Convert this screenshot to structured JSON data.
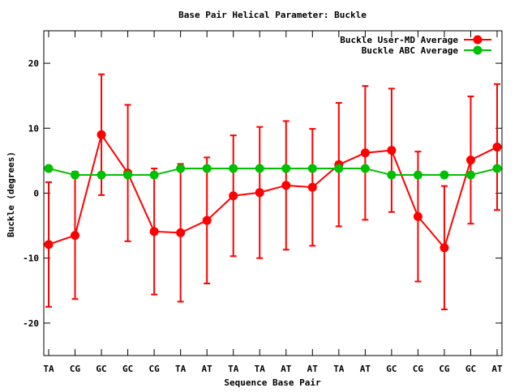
{
  "chart_data": {
    "type": "line",
    "title": "Base Pair Helical Parameter: Buckle",
    "xlabel": "Sequence Base Pair",
    "ylabel": "Buckle (degrees)",
    "categories": [
      "TA",
      "CG",
      "GC",
      "GC",
      "CG",
      "TA",
      "AT",
      "TA",
      "TA",
      "AT",
      "AT",
      "TA",
      "AT",
      "GC",
      "CG",
      "CG",
      "GC",
      "AT"
    ],
    "ylim": [
      -25,
      25
    ],
    "yticks": [
      -20,
      -10,
      0,
      10,
      20
    ],
    "grid": false,
    "legend_position": "top-right",
    "series": [
      {
        "name": "Buckle User-MD Average",
        "color": "#ff0000",
        "values": [
          -7.9,
          -6.5,
          9.0,
          3.1,
          -5.9,
          -6.1,
          -4.2,
          -0.4,
          0.1,
          1.2,
          0.9,
          4.4,
          6.2,
          6.6,
          -3.6,
          -8.4,
          5.1,
          7.1
        ],
        "errors": [
          9.6,
          9.8,
          9.3,
          10.5,
          9.7,
          10.6,
          9.7,
          9.3,
          10.1,
          9.9,
          9.0,
          9.5,
          10.3,
          9.5,
          10.0,
          9.5,
          9.8,
          9.7
        ]
      },
      {
        "name": "Buckle ABC Average",
        "color": "#00c000",
        "values": [
          3.8,
          2.8,
          2.8,
          2.8,
          2.8,
          3.8,
          3.8,
          3.8,
          3.8,
          3.8,
          3.8,
          3.8,
          3.8,
          2.8,
          2.8,
          2.8,
          2.8,
          3.8
        ]
      }
    ]
  }
}
